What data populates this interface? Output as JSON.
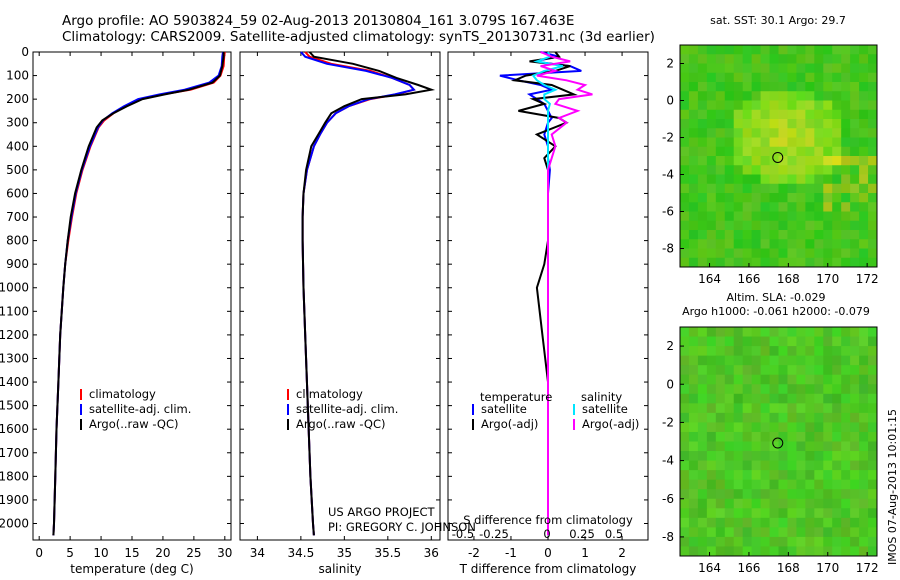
{
  "header": {
    "line1": "Argo profile: AO 5903824_59 02-Aug-2013 20130804_161 3.079S 167.463E",
    "line2": "Climatology: CARS2009. Satellite-adjusted climatology: synTS_20130731.nc (3d earlier)"
  },
  "colors": {
    "clim": "#ff0000",
    "sat": "#0000ff",
    "argo": "#000000",
    "sat_s": "#00e5ff",
    "argo_s": "#ff00ff"
  },
  "chart_data": [
    {
      "type": "line",
      "id": "temperature",
      "xlabel": "temperature (deg C)",
      "ylabel": "",
      "xlim": [
        -1,
        31
      ],
      "ylim": [
        2070,
        0
      ],
      "xticks": [
        0,
        5,
        10,
        15,
        20,
        25,
        30
      ],
      "yticks": [
        0,
        100,
        200,
        300,
        400,
        500,
        600,
        700,
        800,
        900,
        1000,
        1100,
        1200,
        1300,
        1400,
        1500,
        1600,
        1700,
        1800,
        1900,
        2000
      ],
      "legend": [
        "climatology",
        "satellite-adj. clim.",
        "Argo(..raw -QC)"
      ],
      "depth": [
        0,
        20,
        60,
        100,
        130,
        160,
        180,
        200,
        230,
        260,
        290,
        320,
        400,
        500,
        600,
        700,
        800,
        900,
        1000,
        1200,
        1400,
        1600,
        1800,
        2000,
        2050
      ],
      "series": [
        {
          "name": "climatology",
          "color": "clim",
          "values": [
            30,
            29.9,
            29.8,
            29.3,
            28.2,
            24.5,
            20,
            16.5,
            14,
            12,
            10.5,
            9.6,
            8.3,
            7,
            6,
            5.3,
            4.7,
            4.2,
            3.9,
            3.4,
            3.1,
            2.8,
            2.6,
            2.4,
            2.3
          ]
        },
        {
          "name": "satellite-adj. clim.",
          "color": "sat",
          "values": [
            29.7,
            29.6,
            29.5,
            29.0,
            27.5,
            23.5,
            19.5,
            16,
            13.7,
            11.8,
            10.3,
            9.5,
            8.2,
            6.9,
            5.9,
            5.2,
            4.6,
            4.2,
            3.9,
            3.4,
            3.1,
            2.8,
            2.6,
            2.4,
            2.3
          ]
        },
        {
          "name": "Argo(..raw -QC)",
          "color": "argo",
          "values": [
            29.8,
            29.8,
            29.6,
            29.2,
            28.0,
            24.2,
            20.3,
            16.7,
            14.2,
            12,
            10.2,
            9.3,
            8.0,
            6.8,
            5.8,
            5.1,
            4.6,
            4.2,
            3.9,
            3.4,
            3.1,
            2.8,
            2.6,
            2.4,
            2.3
          ]
        }
      ]
    },
    {
      "type": "line",
      "id": "salinity",
      "xlabel": "salinity",
      "ylabel": "",
      "xlim": [
        33.8,
        36.1
      ],
      "ylim": [
        2070,
        0
      ],
      "xticks": [
        34,
        34.5,
        35,
        35.5,
        36
      ],
      "legend": [
        "climatology",
        "satellite-adj. clim.",
        "Argo(..raw -QC)"
      ],
      "annotations": [
        "US ARGO PROJECT",
        "PI: GREGORY C. JOHNSON"
      ],
      "depth": [
        0,
        20,
        50,
        80,
        110,
        140,
        160,
        180,
        200,
        230,
        260,
        300,
        350,
        400,
        500,
        600,
        700,
        800,
        1000,
        1200,
        1500,
        1800,
        2000,
        2050
      ],
      "series": [
        {
          "name": "climatology",
          "color": "clim",
          "values": [
            34.55,
            34.6,
            34.85,
            35.3,
            35.55,
            35.75,
            35.8,
            35.6,
            35.3,
            35.05,
            34.9,
            34.8,
            34.72,
            34.65,
            34.57,
            34.53,
            34.52,
            34.52,
            34.53,
            34.55,
            34.58,
            34.61,
            34.64,
            34.65
          ]
        },
        {
          "name": "satellite-adj. clim.",
          "color": "sat",
          "values": [
            34.5,
            34.55,
            34.8,
            35.25,
            35.55,
            35.75,
            35.8,
            35.58,
            35.28,
            35.05,
            34.9,
            34.8,
            34.72,
            34.65,
            34.57,
            34.53,
            34.52,
            34.52,
            34.53,
            34.55,
            34.58,
            34.61,
            34.64,
            34.65
          ]
        },
        {
          "name": "Argo(..raw -QC)",
          "color": "argo",
          "values": [
            34.6,
            34.65,
            35.1,
            35.4,
            35.6,
            35.85,
            36.0,
            35.7,
            35.2,
            35.0,
            34.85,
            34.78,
            34.7,
            34.62,
            34.56,
            34.53,
            34.52,
            34.52,
            34.53,
            34.55,
            34.58,
            34.61,
            34.64,
            34.65
          ]
        }
      ]
    },
    {
      "type": "line",
      "id": "differences",
      "xlabel": "T difference from climatology",
      "xlabel_top": "S difference from climatology",
      "xlim": [
        -2.7,
        2.7
      ],
      "ylim": [
        2070,
        0
      ],
      "xticks": [
        -2,
        -1,
        0,
        1,
        2
      ],
      "xticks_s": [
        -0.5,
        -0.25,
        0,
        0.25,
        0.5
      ],
      "legend_headers": [
        "temperature",
        "salinity"
      ],
      "legend": [
        "satellite",
        "Argo(-adj)",
        "satellite",
        "Argo(-adj)"
      ],
      "depth": [
        0,
        20,
        40,
        60,
        80,
        100,
        120,
        140,
        160,
        180,
        200,
        220,
        250,
        280,
        300,
        350,
        400,
        450,
        500,
        600,
        800,
        900,
        1000,
        1200,
        1400,
        1600,
        1800,
        2000,
        2050
      ],
      "series": [
        {
          "name": "satellite",
          "group": "temperature",
          "color": "sat",
          "values": [
            -0.2,
            0.3,
            -0.4,
            0.6,
            0.9,
            -1.3,
            -0.8,
            -0.2,
            0.1,
            -0.5,
            -0.3,
            -0.1,
            0,
            0.1,
            0,
            -0.1,
            0,
            0,
            0.05,
            0,
            0,
            0,
            0,
            0,
            0,
            0,
            0,
            0,
            0
          ]
        },
        {
          "name": "Argo(-adj)",
          "group": "temperature",
          "color": "argo",
          "values": [
            0.2,
            0.3,
            -0.5,
            0.6,
            0.2,
            -0.6,
            -0.9,
            0.1,
            0.4,
            0.7,
            -0.4,
            -0.1,
            -0.8,
            0.3,
            0.5,
            -0.3,
            0.2,
            -0.1,
            0,
            0,
            0,
            -0.1,
            -0.3,
            -0.15,
            0,
            0,
            0,
            0,
            0
          ]
        },
        {
          "name": "satellite",
          "group": "salinity",
          "color": "sat_s",
          "values": [
            0,
            0.05,
            -0.3,
            0.4,
            -0.1,
            -0.4,
            -0.3,
            -0.1,
            0.2,
            -0.1,
            -0.1,
            0.05,
            0,
            0,
            0,
            0,
            0,
            0,
            0,
            0,
            0,
            0,
            0,
            0,
            0,
            0,
            0,
            0,
            0
          ]
        },
        {
          "name": "Argo(-adj)",
          "group": "salinity",
          "color": "argo_s",
          "values": [
            -0.2,
            0.1,
            0.6,
            -0.2,
            0.2,
            -0.3,
            0.5,
            1.0,
            0.8,
            1.2,
            0.3,
            0.2,
            0.8,
            0.3,
            0.5,
            0.1,
            0.2,
            0.1,
            0,
            0,
            0,
            0,
            0,
            0,
            0,
            0,
            0,
            0,
            0
          ]
        }
      ]
    },
    {
      "type": "heatmap",
      "id": "sst-map",
      "title": "sat. SST: 30.1  Argo: 29.7",
      "xlim": [
        162.5,
        172.5
      ],
      "ylim": [
        -9,
        3
      ],
      "xticks": [
        164,
        166,
        168,
        170,
        172
      ],
      "yticks": [
        -8,
        -6,
        -4,
        -2,
        0,
        2
      ],
      "marker": {
        "lon": 167.463,
        "lat": -3.079
      }
    },
    {
      "type": "heatmap",
      "id": "sla-map",
      "title": "Altim. SLA: -0.029",
      "subtitle": "Argo h1000: -0.061  h2000: -0.079",
      "xlim": [
        162.5,
        172.5
      ],
      "ylim": [
        -9,
        3
      ],
      "xticks": [
        164,
        166,
        168,
        170,
        172
      ],
      "yticks": [
        -8,
        -6,
        -4,
        -2,
        0,
        2
      ],
      "marker": {
        "lon": 167.463,
        "lat": -3.079
      }
    }
  ],
  "side_label": "IMOS 07-Aug-2013 10:01:15"
}
